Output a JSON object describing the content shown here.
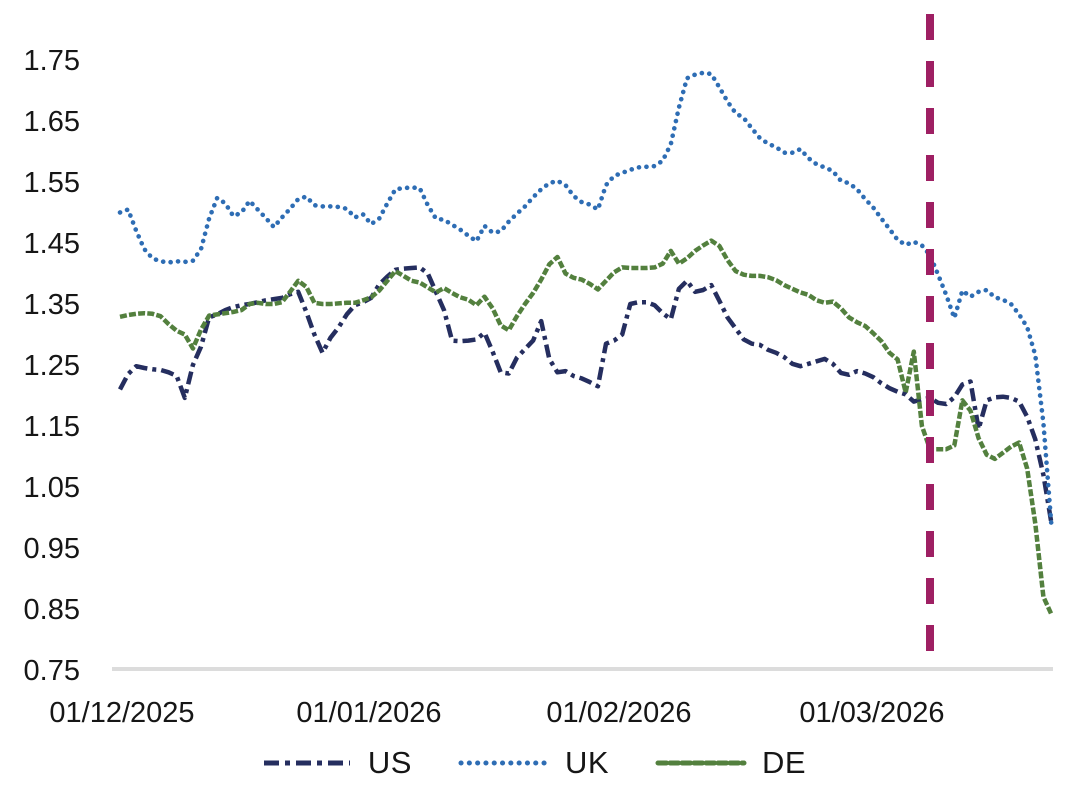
{
  "chart_data": {
    "type": "line",
    "title": "",
    "grid": false,
    "legend_position": "bottom",
    "x_axis": {
      "tick_labels": [
        "01/12/2025",
        "01/01/2026",
        "01/02/2026",
        "01/03/2026"
      ],
      "start_date": "01/12/2025",
      "frequency": "daily"
    },
    "y_axis": {
      "tick_labels": [
        "1.75",
        "1.65",
        "1.55",
        "1.45",
        "1.35",
        "1.25",
        "1.15",
        "1.05",
        "0.95",
        "0.85",
        "0.75"
      ],
      "min": 0.75,
      "max": 1.75
    },
    "marker_line": {
      "orientation": "vertical",
      "style": "dashed",
      "color": "#9e1f63",
      "x_day_index": 100
    },
    "series": [
      {
        "name": "US",
        "color": "#252e5f",
        "style": "dash-dot",
        "values": [
          1.21,
          1.235,
          1.248,
          1.245,
          1.243,
          1.242,
          1.238,
          1.232,
          1.196,
          1.25,
          1.28,
          1.328,
          1.333,
          1.34,
          1.345,
          1.348,
          1.35,
          1.353,
          1.356,
          1.358,
          1.36,
          1.366,
          1.37,
          1.337,
          1.3,
          1.27,
          1.295,
          1.312,
          1.333,
          1.348,
          1.353,
          1.36,
          1.382,
          1.395,
          1.406,
          1.408,
          1.409,
          1.41,
          1.4,
          1.37,
          1.34,
          1.29,
          1.289,
          1.29,
          1.292,
          1.303,
          1.272,
          1.238,
          1.236,
          1.262,
          1.276,
          1.29,
          1.322,
          1.26,
          1.238,
          1.24,
          1.232,
          1.228,
          1.222,
          1.215,
          1.285,
          1.29,
          1.3,
          1.35,
          1.353,
          1.353,
          1.348,
          1.335,
          1.325,
          1.375,
          1.388,
          1.37,
          1.373,
          1.381,
          1.355,
          1.328,
          1.31,
          1.292,
          1.285,
          1.283,
          1.275,
          1.27,
          1.263,
          1.252,
          1.248,
          1.252,
          1.256,
          1.26,
          1.252,
          1.237,
          1.234,
          1.24,
          1.236,
          1.23,
          1.22,
          1.212,
          1.206,
          1.202,
          1.19,
          1.194,
          1.196,
          1.188,
          1.186,
          1.197,
          1.218,
          1.223,
          1.145,
          1.192,
          1.197,
          1.198,
          1.196,
          1.19,
          1.165,
          1.128,
          1.07,
          0.99
        ]
      },
      {
        "name": "UK",
        "color": "#2e6db4",
        "style": "dotted",
        "values": [
          1.5,
          1.505,
          1.47,
          1.44,
          1.425,
          1.42,
          1.418,
          1.42,
          1.419,
          1.421,
          1.44,
          1.49,
          1.524,
          1.515,
          1.494,
          1.5,
          1.519,
          1.505,
          1.491,
          1.476,
          1.492,
          1.506,
          1.522,
          1.526,
          1.512,
          1.51,
          1.51,
          1.509,
          1.506,
          1.492,
          1.497,
          1.481,
          1.49,
          1.515,
          1.538,
          1.54,
          1.541,
          1.54,
          1.512,
          1.49,
          1.488,
          1.48,
          1.472,
          1.462,
          1.453,
          1.478,
          1.467,
          1.469,
          1.485,
          1.498,
          1.51,
          1.525,
          1.538,
          1.548,
          1.552,
          1.545,
          1.527,
          1.517,
          1.513,
          1.505,
          1.545,
          1.56,
          1.565,
          1.57,
          1.574,
          1.575,
          1.576,
          1.585,
          1.612,
          1.672,
          1.72,
          1.726,
          1.729,
          1.727,
          1.705,
          1.682,
          1.663,
          1.655,
          1.638,
          1.622,
          1.613,
          1.607,
          1.598,
          1.598,
          1.604,
          1.589,
          1.579,
          1.574,
          1.568,
          1.552,
          1.548,
          1.538,
          1.522,
          1.508,
          1.49,
          1.473,
          1.455,
          1.447,
          1.452,
          1.446,
          1.43,
          1.398,
          1.365,
          1.327,
          1.372,
          1.362,
          1.37,
          1.373,
          1.361,
          1.357,
          1.35,
          1.333,
          1.312,
          1.266,
          1.155,
          0.985
        ]
      },
      {
        "name": "DE",
        "color": "#53803e",
        "style": "solid",
        "values": [
          1.329,
          1.332,
          1.334,
          1.335,
          1.334,
          1.33,
          1.317,
          1.306,
          1.3,
          1.277,
          1.308,
          1.331,
          1.333,
          1.335,
          1.337,
          1.34,
          1.35,
          1.352,
          1.35,
          1.35,
          1.353,
          1.37,
          1.388,
          1.378,
          1.352,
          1.35,
          1.35,
          1.351,
          1.352,
          1.352,
          1.356,
          1.361,
          1.372,
          1.388,
          1.404,
          1.396,
          1.388,
          1.385,
          1.377,
          1.369,
          1.376,
          1.368,
          1.361,
          1.357,
          1.348,
          1.362,
          1.343,
          1.315,
          1.307,
          1.33,
          1.35,
          1.368,
          1.39,
          1.415,
          1.427,
          1.4,
          1.393,
          1.39,
          1.383,
          1.374,
          1.388,
          1.402,
          1.41,
          1.409,
          1.409,
          1.409,
          1.41,
          1.416,
          1.437,
          1.416,
          1.425,
          1.437,
          1.446,
          1.454,
          1.445,
          1.422,
          1.404,
          1.398,
          1.396,
          1.396,
          1.394,
          1.389,
          1.381,
          1.375,
          1.369,
          1.365,
          1.356,
          1.352,
          1.354,
          1.343,
          1.328,
          1.32,
          1.314,
          1.302,
          1.289,
          1.27,
          1.259,
          1.205,
          1.272,
          1.15,
          1.112,
          1.112,
          1.112,
          1.118,
          1.192,
          1.175,
          1.13,
          1.103,
          1.096,
          1.106,
          1.116,
          1.123,
          1.08,
          0.99,
          0.87,
          0.841
        ]
      }
    ]
  },
  "legend": {
    "items": [
      {
        "label": "US"
      },
      {
        "label": "UK"
      },
      {
        "label": "DE"
      }
    ]
  },
  "colors": {
    "background": "#ffffff",
    "axis_line": "#dcdcdc",
    "text": "#161616"
  }
}
